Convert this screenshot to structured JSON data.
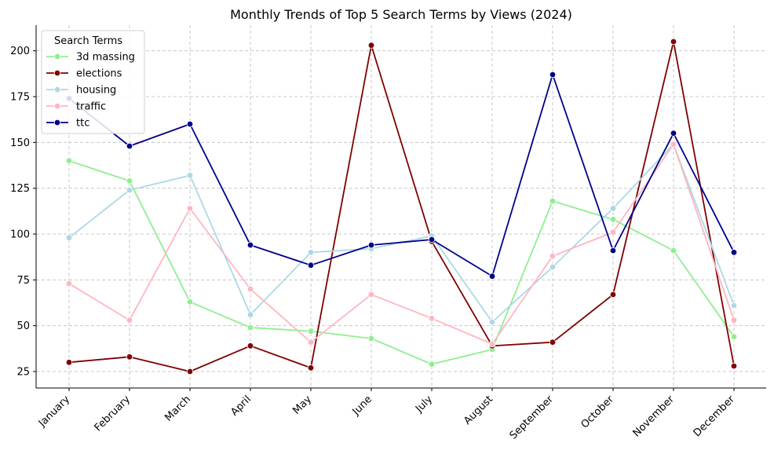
{
  "chart_data": {
    "type": "line",
    "title": "Monthly Trends of Top 5 Search Terms by Views (2024)",
    "xlabel": "",
    "ylabel": "",
    "categories": [
      "January",
      "February",
      "March",
      "April",
      "May",
      "June",
      "July",
      "August",
      "September",
      "October",
      "November",
      "December"
    ],
    "ylim": [
      16,
      214
    ],
    "yticks": [
      25,
      50,
      75,
      100,
      125,
      150,
      175,
      200
    ],
    "grid": true,
    "legend": {
      "title": "Search Terms",
      "position": "top-left"
    },
    "series": [
      {
        "name": "3d massing",
        "color": "#90ee90",
        "values": [
          140,
          129,
          63,
          49,
          47,
          43,
          29,
          37,
          118,
          108,
          91,
          44
        ]
      },
      {
        "name": "elections",
        "color": "#800000",
        "values": [
          30,
          33,
          25,
          39,
          27,
          203,
          96,
          39,
          41,
          67,
          205,
          28
        ]
      },
      {
        "name": "housing",
        "color": "#add8e6",
        "values": [
          98,
          124,
          132,
          56,
          90,
          92,
          99,
          52,
          82,
          114,
          149,
          61
        ]
      },
      {
        "name": "traffic",
        "color": "#ffb6c1",
        "values": [
          73,
          53,
          114,
          70,
          41,
          67,
          54,
          40,
          88,
          101,
          149,
          53
        ]
      },
      {
        "name": "ttc",
        "color": "#00008b",
        "values": [
          174,
          148,
          160,
          94,
          83,
          94,
          97,
          77,
          187,
          91,
          155,
          90
        ]
      }
    ]
  }
}
